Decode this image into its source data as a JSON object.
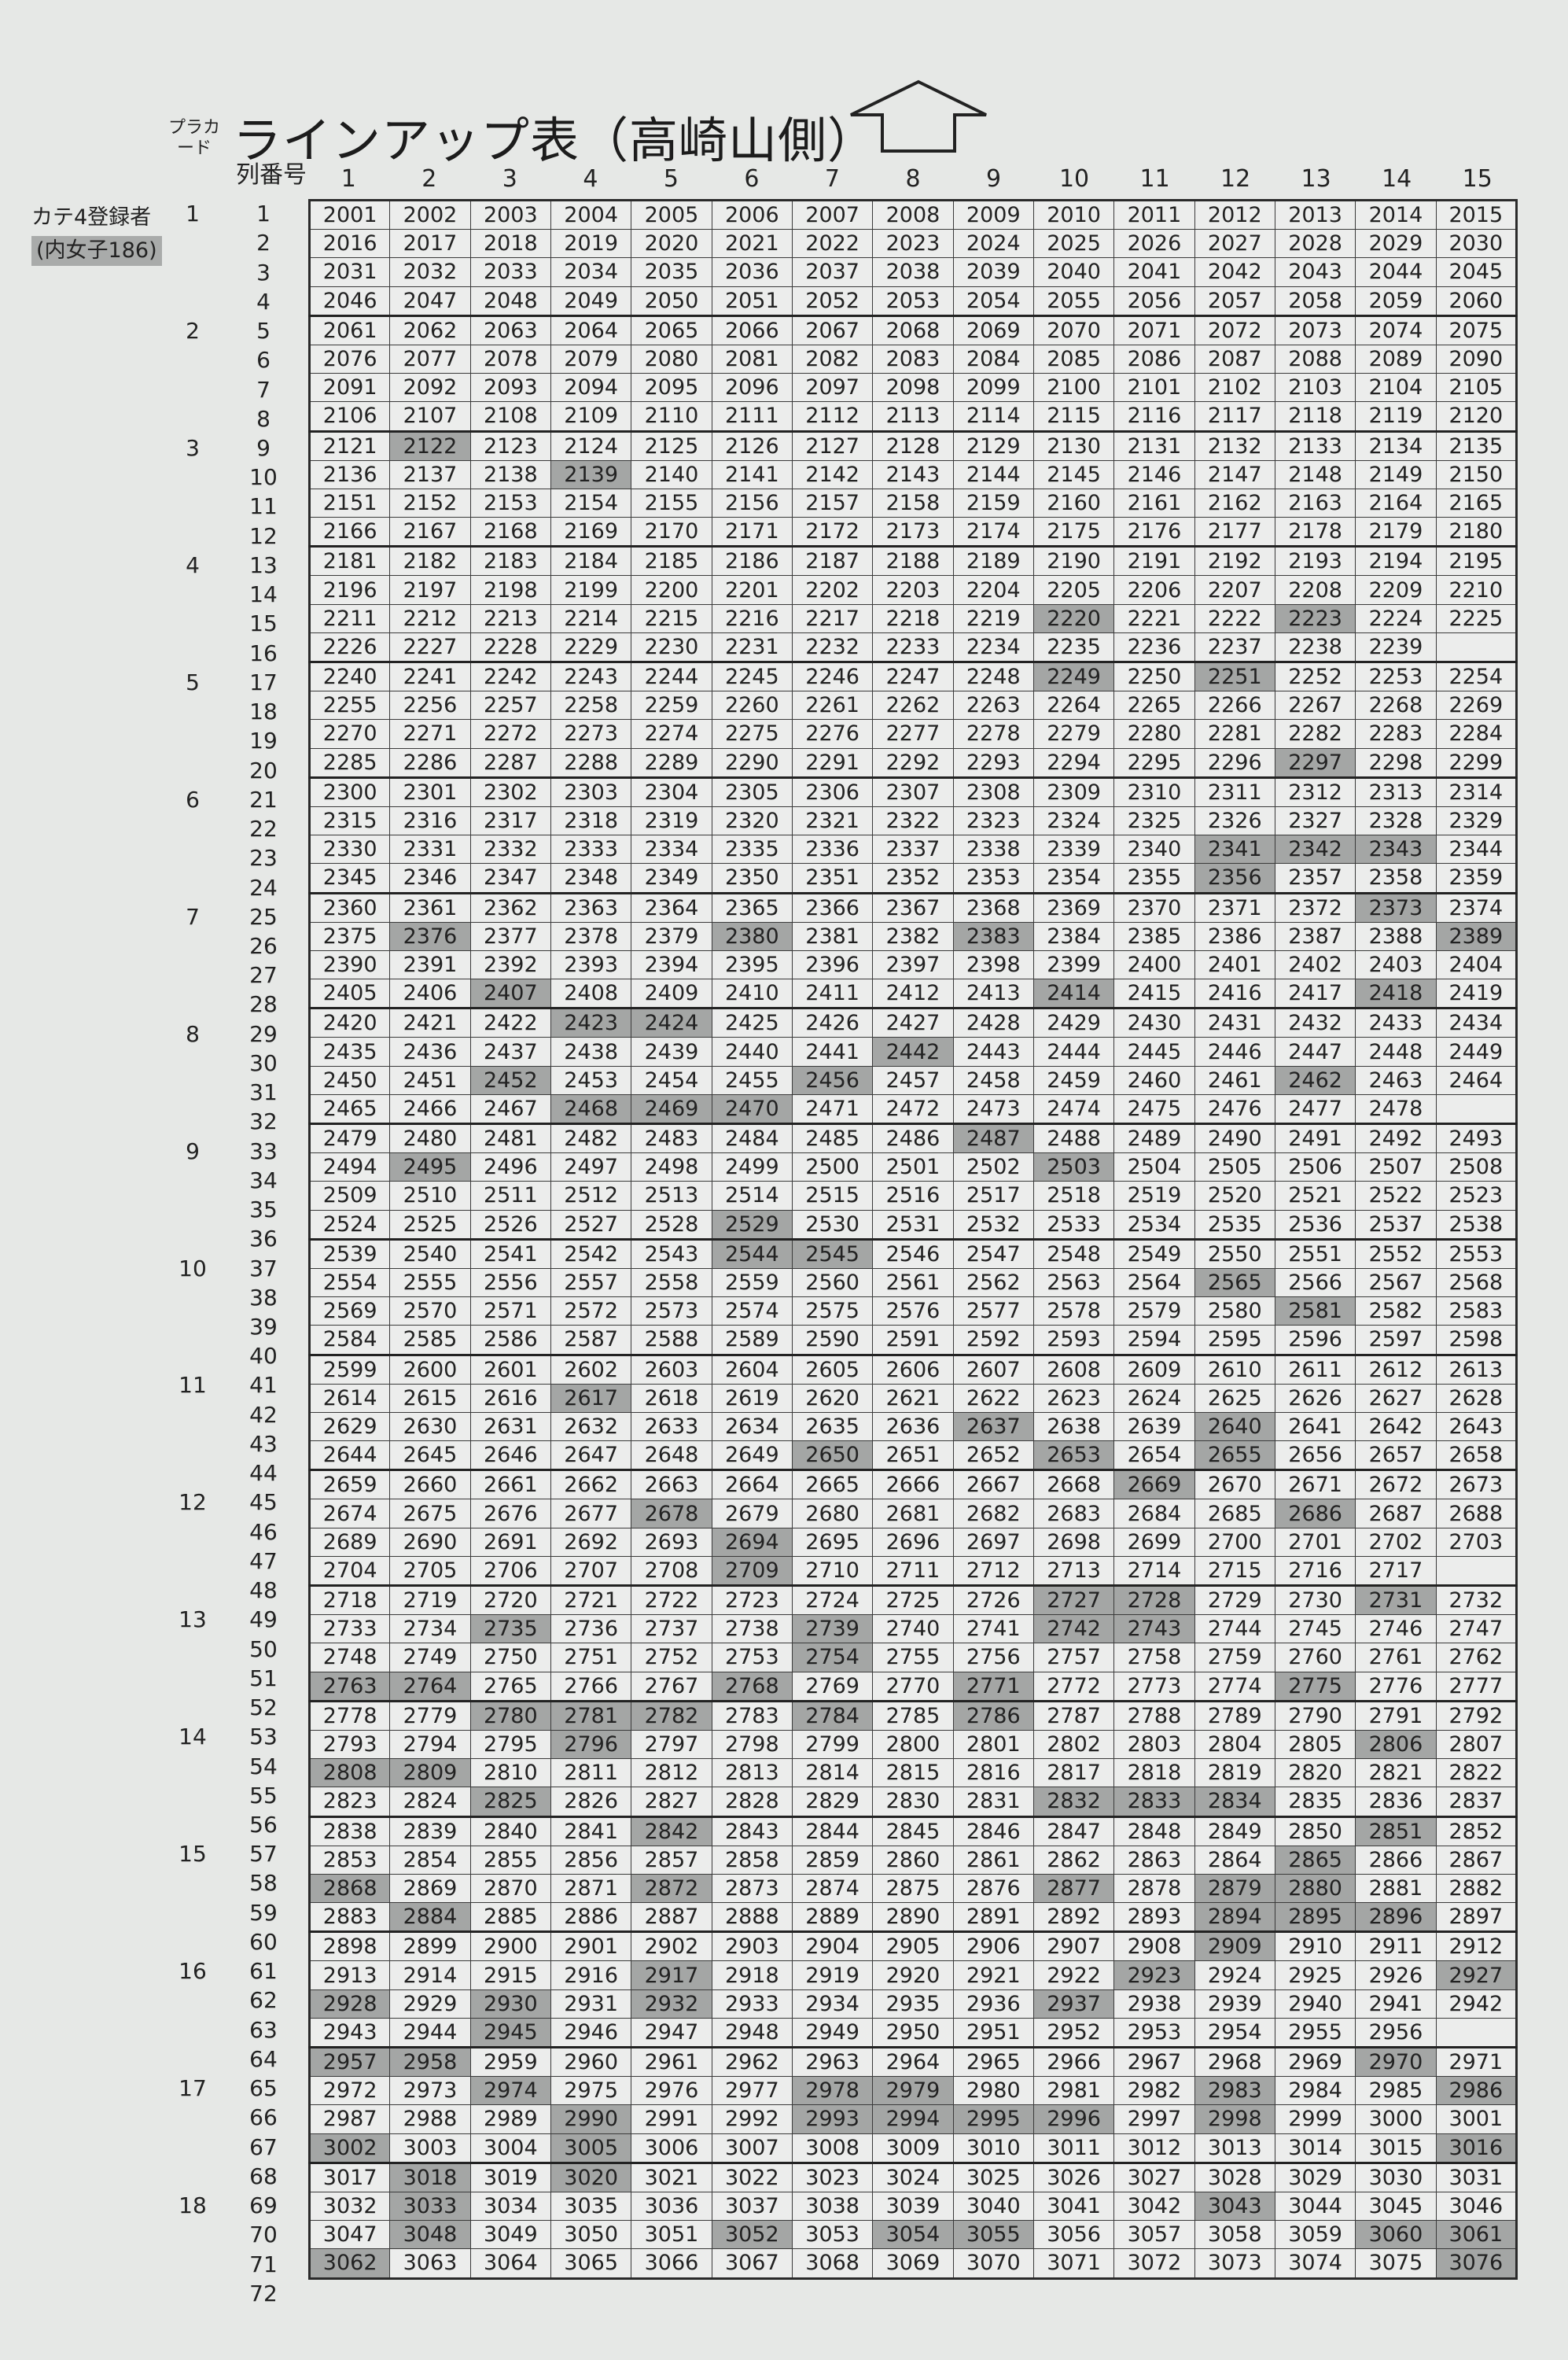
{
  "title": "ラインアップ表（高崎山側）",
  "icons": {
    "direction": "up-arrow-icon"
  },
  "headers": {
    "placard": "プラカード",
    "row_number": "列番号",
    "columns": [
      "1",
      "2",
      "3",
      "4",
      "5",
      "6",
      "7",
      "8",
      "9",
      "10",
      "11",
      "12",
      "13",
      "14",
      "15"
    ]
  },
  "category": {
    "label": "カテ4登録者",
    "sub": "(内女子186)"
  },
  "colors": {
    "paper": "#e6e8e6",
    "highlight": "#a4a6a5",
    "border": "#2a2a2a"
  },
  "placards": {
    "1": "1",
    "5": "2",
    "9": "3",
    "13": "4",
    "17": "5",
    "21": "6",
    "25": "7",
    "29": "8",
    "33": "9",
    "37": "10",
    "41": "11",
    "45": "12",
    "49": "13",
    "53": "14",
    "57": "15",
    "61": "16",
    "65": "17",
    "69": "18"
  },
  "row_starts": [
    {
      "row": 1,
      "start": 2001,
      "count": 15
    },
    {
      "row": 2,
      "start": 2016,
      "count": 15
    },
    {
      "row": 3,
      "start": 2031,
      "count": 15
    },
    {
      "row": 4,
      "start": 2046,
      "count": 15
    },
    {
      "row": 5,
      "start": 2061,
      "count": 15
    },
    {
      "row": 6,
      "start": 2076,
      "count": 15
    },
    {
      "row": 7,
      "start": 2091,
      "count": 15
    },
    {
      "row": 8,
      "start": 2106,
      "count": 15
    },
    {
      "row": 9,
      "start": 2121,
      "count": 15
    },
    {
      "row": 10,
      "start": 2136,
      "count": 15
    },
    {
      "row": 11,
      "start": 2151,
      "count": 15
    },
    {
      "row": 12,
      "start": 2166,
      "count": 15
    },
    {
      "row": 13,
      "start": 2181,
      "count": 15
    },
    {
      "row": 14,
      "start": 2196,
      "count": 15
    },
    {
      "row": 15,
      "start": 2211,
      "count": 15
    },
    {
      "row": 16,
      "start": 2226,
      "count": 14
    },
    {
      "row": 17,
      "start": 2240,
      "count": 15
    },
    {
      "row": 18,
      "start": 2255,
      "count": 15
    },
    {
      "row": 19,
      "start": 2270,
      "count": 15
    },
    {
      "row": 20,
      "start": 2285,
      "count": 15
    },
    {
      "row": 21,
      "start": 2300,
      "count": 15
    },
    {
      "row": 22,
      "start": 2315,
      "count": 15
    },
    {
      "row": 23,
      "start": 2330,
      "count": 15
    },
    {
      "row": 24,
      "start": 2345,
      "count": 15
    },
    {
      "row": 25,
      "start": 2360,
      "count": 15
    },
    {
      "row": 26,
      "start": 2375,
      "count": 15
    },
    {
      "row": 27,
      "start": 2390,
      "count": 15
    },
    {
      "row": 28,
      "start": 2405,
      "count": 15
    },
    {
      "row": 29,
      "start": 2420,
      "count": 15
    },
    {
      "row": 30,
      "start": 2435,
      "count": 15
    },
    {
      "row": 31,
      "start": 2450,
      "count": 15
    },
    {
      "row": 32,
      "start": 2465,
      "count": 14
    },
    {
      "row": 33,
      "start": 2479,
      "count": 15
    },
    {
      "row": 34,
      "start": 2494,
      "count": 15
    },
    {
      "row": 35,
      "start": 2509,
      "count": 15
    },
    {
      "row": 36,
      "start": 2524,
      "count": 15
    },
    {
      "row": 37,
      "start": 2539,
      "count": 15
    },
    {
      "row": 38,
      "start": 2554,
      "count": 15
    },
    {
      "row": 39,
      "start": 2569,
      "count": 15
    },
    {
      "row": 40,
      "start": 2584,
      "count": 15
    },
    {
      "row": 41,
      "start": 2599,
      "count": 15
    },
    {
      "row": 42,
      "start": 2614,
      "count": 15
    },
    {
      "row": 43,
      "start": 2629,
      "count": 15
    },
    {
      "row": 44,
      "start": 2644,
      "count": 15
    },
    {
      "row": 45,
      "start": 2659,
      "count": 15
    },
    {
      "row": 46,
      "start": 2674,
      "count": 15
    },
    {
      "row": 47,
      "start": 2689,
      "count": 15
    },
    {
      "row": 48,
      "start": 2704,
      "count": 14
    },
    {
      "row": 49,
      "start": 2718,
      "count": 15
    },
    {
      "row": 50,
      "start": 2733,
      "count": 15
    },
    {
      "row": 51,
      "start": 2748,
      "count": 15
    },
    {
      "row": 52,
      "start": 2763,
      "count": 15
    },
    {
      "row": 53,
      "start": 2778,
      "count": 15
    },
    {
      "row": 54,
      "start": 2793,
      "count": 15
    },
    {
      "row": 55,
      "start": 2808,
      "count": 15
    },
    {
      "row": 56,
      "start": 2823,
      "count": 15
    },
    {
      "row": 57,
      "start": 2838,
      "count": 15
    },
    {
      "row": 58,
      "start": 2853,
      "count": 15
    },
    {
      "row": 59,
      "start": 2868,
      "count": 15
    },
    {
      "row": 60,
      "start": 2883,
      "count": 15
    },
    {
      "row": 61,
      "start": 2898,
      "count": 15
    },
    {
      "row": 62,
      "start": 2913,
      "count": 15
    },
    {
      "row": 63,
      "start": 2928,
      "count": 15
    },
    {
      "row": 64,
      "start": 2943,
      "count": 14
    },
    {
      "row": 65,
      "start": 2957,
      "count": 15
    },
    {
      "row": 66,
      "start": 2972,
      "count": 15
    },
    {
      "row": 67,
      "start": 2987,
      "count": 15
    },
    {
      "row": 68,
      "start": 3002,
      "count": 15
    },
    {
      "row": 69,
      "start": 3017,
      "count": 15
    },
    {
      "row": 70,
      "start": 3032,
      "count": 15
    },
    {
      "row": 71,
      "start": 3047,
      "count": 15
    },
    {
      "row": 72,
      "start": 3062,
      "count": 15
    }
  ],
  "highlighted_cells": [
    2122,
    2139,
    2220,
    2223,
    2249,
    2251,
    2297,
    2341,
    2342,
    2343,
    2356,
    2373,
    2376,
    2380,
    2383,
    2389,
    2407,
    2414,
    2418,
    2423,
    2424,
    2442,
    2452,
    2456,
    2462,
    2468,
    2469,
    2470,
    2487,
    2495,
    2503,
    2529,
    2544,
    2545,
    2565,
    2581,
    2617,
    2637,
    2640,
    2650,
    2653,
    2655,
    2669,
    2678,
    2686,
    2694,
    2709,
    2727,
    2728,
    2731,
    2735,
    2739,
    2742,
    2743,
    2754,
    2763,
    2764,
    2768,
    2771,
    2775,
    2780,
    2781,
    2782,
    2784,
    2786,
    2796,
    2806,
    2808,
    2809,
    2825,
    2832,
    2833,
    2834,
    2842,
    2851,
    2865,
    2868,
    2872,
    2877,
    2879,
    2880,
    2884,
    2894,
    2895,
    2896,
    2909,
    2917,
    2923,
    2927,
    2928,
    2930,
    2932,
    2937,
    2945,
    2957,
    2958,
    2970,
    2974,
    2978,
    2979,
    2983,
    2986,
    2990,
    2993,
    2994,
    2995,
    2996,
    2998,
    3002,
    3005,
    3016,
    3018,
    3020,
    3033,
    3043,
    3048,
    3052,
    3054,
    3055,
    3060,
    3061,
    3062,
    3076
  ]
}
